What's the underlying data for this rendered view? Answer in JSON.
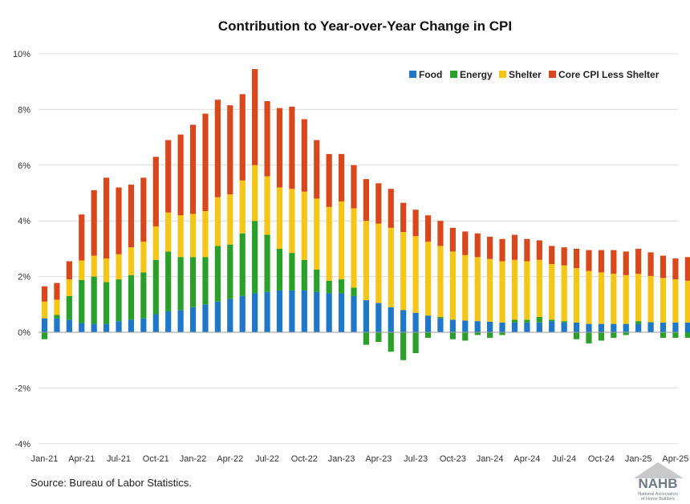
{
  "chart_data": {
    "type": "bar",
    "stacked": true,
    "title": "Contribution to Year-over-Year Change in CPI",
    "source": "Source: Bureau of Labor Statistics.",
    "logo": {
      "text": "NAHB",
      "subtext": [
        "National Association",
        "of Home Builders"
      ]
    },
    "ylim": [
      -4,
      10
    ],
    "y_ticks": [
      -4,
      -2,
      0,
      2,
      4,
      6,
      8,
      10
    ],
    "y_tick_labels": [
      "-4%",
      "-2%",
      "0%",
      "2%",
      "4%",
      "6%",
      "8%",
      "10%"
    ],
    "grid": true,
    "legend": "top-right",
    "categories": [
      "Jan-21",
      "Feb-21",
      "Mar-21",
      "Apr-21",
      "May-21",
      "Jun-21",
      "Jul-21",
      "Aug-21",
      "Sep-21",
      "Oct-21",
      "Nov-21",
      "Dec-21",
      "Jan-22",
      "Feb-22",
      "Mar-22",
      "Apr-22",
      "May-22",
      "Jun-22",
      "Jul-22",
      "Aug-22",
      "Sep-22",
      "Oct-22",
      "Nov-22",
      "Dec-22",
      "Jan-23",
      "Feb-23",
      "Mar-23",
      "Apr-23",
      "May-23",
      "Jun-23",
      "Jul-23",
      "Aug-23",
      "Sep-23",
      "Oct-23",
      "Nov-23",
      "Dec-23",
      "Jan-24",
      "Feb-24",
      "Mar-24",
      "Apr-24",
      "May-24",
      "Jun-24",
      "Jul-24",
      "Aug-24",
      "Sep-24",
      "Oct-24",
      "Nov-24",
      "Dec-24",
      "Jan-25",
      "Feb-25",
      "Mar-25",
      "Apr-25",
      "May-25"
    ],
    "x_tick_labels": [
      "Jan-21",
      "Apr-21",
      "Jul-21",
      "Oct-21",
      "Jan-22",
      "Apr-22",
      "Jul-22",
      "Oct-22",
      "Jan-23",
      "Apr-23",
      "Jul-23",
      "Oct-23",
      "Jan-24",
      "Apr-24",
      "Jul-24",
      "Oct-24",
      "Jan-25",
      "Apr-25"
    ],
    "series": [
      {
        "name": "Food",
        "color": "#1f77c9",
        "values": [
          0.5,
          0.5,
          0.45,
          0.33,
          0.3,
          0.3,
          0.4,
          0.45,
          0.5,
          0.65,
          0.75,
          0.8,
          0.9,
          1.0,
          1.1,
          1.2,
          1.3,
          1.4,
          1.45,
          1.5,
          1.5,
          1.5,
          1.45,
          1.4,
          1.4,
          1.3,
          1.15,
          1.05,
          0.9,
          0.8,
          0.7,
          0.6,
          0.5,
          0.45,
          0.42,
          0.4,
          0.38,
          0.35,
          0.35,
          0.35,
          0.35,
          0.4,
          0.35,
          0.35,
          0.3,
          0.3,
          0.3,
          0.3,
          0.3,
          0.35,
          0.35,
          0.35,
          0.35
        ]
      },
      {
        "name": "Energy",
        "color": "#2aa02a",
        "values": [
          -0.25,
          0.12,
          0.85,
          1.55,
          1.7,
          1.5,
          1.5,
          1.6,
          1.65,
          1.95,
          2.15,
          1.9,
          1.8,
          1.7,
          2.0,
          1.95,
          2.25,
          2.6,
          2.05,
          1.5,
          1.35,
          1.1,
          0.8,
          0.45,
          0.5,
          0.3,
          -0.45,
          -0.35,
          -0.7,
          -1.0,
          -0.75,
          -0.2,
          0.05,
          -0.25,
          -0.3,
          -0.1,
          -0.2,
          -0.1,
          0.1,
          0.1,
          0.2,
          0.05,
          0.05,
          -0.25,
          -0.4,
          -0.3,
          -0.2,
          -0.1,
          0.1,
          0.02,
          -0.2,
          -0.2,
          -0.2
        ]
      },
      {
        "name": "Shelter",
        "color": "#f5c518",
        "values": [
          0.6,
          0.55,
          0.6,
          0.7,
          0.75,
          0.85,
          0.9,
          1.0,
          1.1,
          1.2,
          1.4,
          1.5,
          1.55,
          1.65,
          1.75,
          1.8,
          1.9,
          2.0,
          2.1,
          2.2,
          2.3,
          2.45,
          2.55,
          2.65,
          2.8,
          2.85,
          2.85,
          2.85,
          2.85,
          2.8,
          2.75,
          2.65,
          2.55,
          2.45,
          2.35,
          2.3,
          2.25,
          2.2,
          2.15,
          2.1,
          2.05,
          2.0,
          2.0,
          1.95,
          1.9,
          1.85,
          1.8,
          1.75,
          1.7,
          1.65,
          1.6,
          1.55,
          1.5
        ]
      },
      {
        "name": "Core CPI Less Shelter",
        "color": "#d9481c",
        "values": [
          0.55,
          0.6,
          0.65,
          1.65,
          2.35,
          2.9,
          2.4,
          2.25,
          2.3,
          2.5,
          2.6,
          2.9,
          3.2,
          3.5,
          3.5,
          3.2,
          3.1,
          3.45,
          2.7,
          2.85,
          2.95,
          2.6,
          2.1,
          1.9,
          1.7,
          1.55,
          1.5,
          1.45,
          1.4,
          1.05,
          0.95,
          0.95,
          0.9,
          0.85,
          0.85,
          0.85,
          0.8,
          0.8,
          0.9,
          0.8,
          0.7,
          0.65,
          0.65,
          0.7,
          0.75,
          0.8,
          0.85,
          0.85,
          0.9,
          0.85,
          0.8,
          0.75,
          0.85
        ]
      }
    ]
  }
}
